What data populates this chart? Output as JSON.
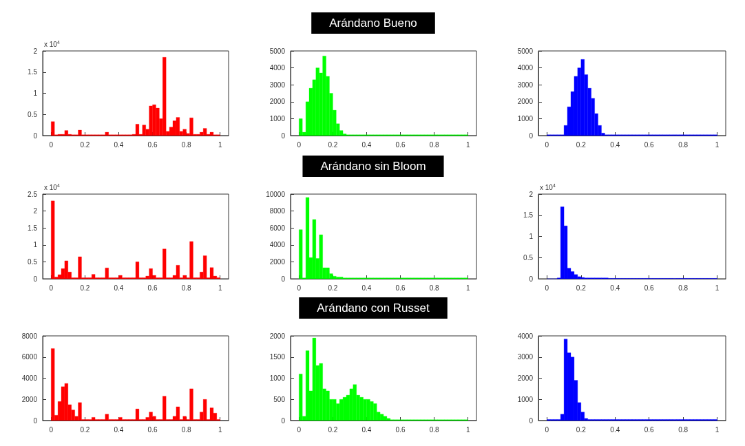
{
  "chart_data": [
    {
      "type": "histogram",
      "color": "#ff0000",
      "bins": [
        0,
        0.02,
        0.04,
        0.06,
        0.08,
        0.1,
        0.12,
        0.14,
        0.16,
        0.18,
        0.2,
        0.22,
        0.24,
        0.26,
        0.28,
        0.3,
        0.32,
        0.34,
        0.36,
        0.38,
        0.4,
        0.42,
        0.44,
        0.46,
        0.48,
        0.5,
        0.52,
        0.54,
        0.56,
        0.58,
        0.6,
        0.62,
        0.64,
        0.66,
        0.68,
        0.7,
        0.72,
        0.74,
        0.76,
        0.78,
        0.8,
        0.82,
        0.84,
        0.86,
        0.88,
        0.9,
        0.92,
        0.94,
        0.96,
        0.98,
        1
      ],
      "values": [
        0.33,
        0.02,
        0.03,
        0.03,
        0.12,
        0.03,
        0.02,
        0.02,
        0.13,
        0.02,
        0.02,
        0.02,
        0.02,
        0.02,
        0.02,
        0.02,
        0.08,
        0.02,
        0.02,
        0.02,
        0.02,
        0.02,
        0.02,
        0.02,
        0.03,
        0.27,
        0.03,
        0.25,
        0.15,
        0.7,
        0.73,
        0.65,
        0.4,
        1.85,
        0.1,
        0.2,
        0.35,
        0.43,
        0.1,
        0.15,
        0.05,
        0.42,
        0.03,
        0.03,
        0.08,
        0.17,
        0.03,
        0.08,
        0.02,
        0.02
      ],
      "xlim": [
        -0.05,
        1.05
      ],
      "xticks": [
        0,
        0.2,
        0.4,
        0.6,
        0.8,
        1
      ],
      "ylim": [
        0,
        2
      ],
      "yticks": [
        0,
        0.5,
        1,
        1.5,
        2
      ],
      "annotations": [
        "x 10$^{4}$"
      ]
    },
    {
      "type": "histogram",
      "title": "Arándano Bueno",
      "color": "#00ff00",
      "bins": [
        0,
        0.02,
        0.04,
        0.06,
        0.08,
        0.1,
        0.12,
        0.14,
        0.16,
        0.18,
        0.2,
        0.22,
        0.24,
        0.26,
        0.28,
        0.3,
        0.32,
        0.34,
        0.36,
        0.38,
        0.4,
        0.42,
        0.44,
        0.46,
        0.48,
        0.5,
        0.52,
        0.54,
        0.56,
        0.58,
        0.6,
        0.62,
        0.64,
        0.66,
        0.68,
        0.7,
        0.72,
        0.74,
        0.76,
        0.78,
        0.8,
        0.82,
        0.84,
        0.86,
        0.88,
        0.9,
        0.92,
        0.94,
        0.96,
        0.98,
        1
      ],
      "values": [
        1000,
        200,
        2000,
        2800,
        3300,
        4000,
        3700,
        4700,
        3500,
        2500,
        1500,
        700,
        300,
        100,
        50,
        50,
        50,
        50,
        50,
        50,
        50,
        50,
        50,
        50,
        50,
        50,
        50,
        50,
        50,
        50,
        50,
        50,
        50,
        50,
        50,
        50,
        50,
        50,
        50,
        50,
        50,
        50,
        50,
        50,
        50,
        50,
        50,
        50,
        50,
        50
      ],
      "xlim": [
        -0.05,
        1.05
      ],
      "xticks": [
        0,
        0.2,
        0.4,
        0.6,
        0.8,
        1
      ],
      "ylim": [
        0,
        5000
      ],
      "yticks": [
        0,
        1000,
        2000,
        3000,
        4000,
        5000
      ]
    },
    {
      "type": "histogram",
      "color": "#0000ff",
      "bins": [
        0,
        0.02,
        0.04,
        0.06,
        0.08,
        0.1,
        0.12,
        0.14,
        0.16,
        0.18,
        0.2,
        0.22,
        0.24,
        0.26,
        0.28,
        0.3,
        0.32,
        0.34,
        0.36,
        0.38,
        0.4,
        0.42,
        0.44,
        0.46,
        0.48,
        0.5,
        0.52,
        0.54,
        0.56,
        0.58,
        0.6,
        0.62,
        0.64,
        0.66,
        0.68,
        0.7,
        0.72,
        0.74,
        0.76,
        0.78,
        0.8,
        0.82,
        0.84,
        0.86,
        0.88,
        0.9,
        0.92,
        0.94,
        0.96,
        0.98,
        1
      ],
      "values": [
        50,
        50,
        50,
        50,
        50,
        600,
        1700,
        2600,
        3500,
        4000,
        4500,
        3600,
        2800,
        2200,
        1300,
        600,
        150,
        50,
        50,
        50,
        50,
        50,
        50,
        50,
        50,
        50,
        50,
        50,
        50,
        50,
        50,
        50,
        50,
        50,
        50,
        50,
        50,
        50,
        50,
        50,
        50,
        50,
        50,
        50,
        50,
        50,
        50,
        50,
        50,
        50
      ],
      "xlim": [
        -0.05,
        1.05
      ],
      "xticks": [
        0,
        0.2,
        0.4,
        0.6,
        0.8,
        1
      ],
      "ylim": [
        0,
        5000
      ],
      "yticks": [
        0,
        1000,
        2000,
        3000,
        4000,
        5000
      ]
    },
    {
      "type": "histogram",
      "color": "#ff0000",
      "bins": [
        0,
        0.02,
        0.04,
        0.06,
        0.08,
        0.1,
        0.12,
        0.14,
        0.16,
        0.18,
        0.2,
        0.22,
        0.24,
        0.26,
        0.28,
        0.3,
        0.32,
        0.34,
        0.36,
        0.38,
        0.4,
        0.42,
        0.44,
        0.46,
        0.48,
        0.5,
        0.52,
        0.54,
        0.56,
        0.58,
        0.6,
        0.62,
        0.64,
        0.66,
        0.68,
        0.7,
        0.72,
        0.74,
        0.76,
        0.78,
        0.8,
        0.82,
        0.84,
        0.86,
        0.88,
        0.9,
        0.92,
        0.94,
        0.96,
        0.98,
        1
      ],
      "values": [
        2.3,
        0.05,
        0.12,
        0.3,
        0.53,
        0.2,
        0.03,
        0.03,
        0.65,
        0.03,
        0.03,
        0.03,
        0.13,
        0.03,
        0.03,
        0.03,
        0.32,
        0.03,
        0.03,
        0.03,
        0.1,
        0.03,
        0.03,
        0.03,
        0.03,
        0.5,
        0.03,
        0.03,
        0.08,
        0.3,
        0.1,
        0.03,
        0.03,
        0.88,
        0.03,
        0.03,
        0.1,
        0.4,
        0.03,
        0.1,
        0.03,
        1.1,
        0.03,
        0.03,
        0.2,
        0.68,
        0.03,
        0.33,
        0.08,
        0.03
      ],
      "xlim": [
        -0.05,
        1.05
      ],
      "xticks": [
        0,
        0.2,
        0.4,
        0.6,
        0.8,
        1
      ],
      "ylim": [
        0,
        2.5
      ],
      "yticks": [
        0,
        0.5,
        1,
        1.5,
        2,
        2.5
      ],
      "annotations": [
        "x 10$^{4}$"
      ]
    },
    {
      "type": "histogram",
      "title": "Arándano sin Bloom",
      "color": "#00ff00",
      "bins": [
        0,
        0.02,
        0.04,
        0.06,
        0.08,
        0.1,
        0.12,
        0.14,
        0.16,
        0.18,
        0.2,
        0.22,
        0.24,
        0.26,
        0.28,
        0.3,
        0.32,
        0.34,
        0.36,
        0.38,
        0.4,
        0.42,
        0.44,
        0.46,
        0.48,
        0.5,
        0.52,
        0.54,
        0.56,
        0.58,
        0.6,
        0.62,
        0.64,
        0.66,
        0.68,
        0.7,
        0.72,
        0.74,
        0.76,
        0.78,
        0.8,
        0.82,
        0.84,
        0.86,
        0.88,
        0.9,
        0.92,
        0.94,
        0.96,
        0.98,
        1
      ],
      "values": [
        5800,
        100,
        9600,
        2500,
        7000,
        2400,
        5200,
        1300,
        1300,
        600,
        300,
        200,
        200,
        100,
        100,
        100,
        100,
        100,
        100,
        100,
        100,
        100,
        100,
        100,
        100,
        100,
        100,
        100,
        100,
        100,
        100,
        100,
        100,
        100,
        100,
        100,
        100,
        100,
        100,
        100,
        100,
        100,
        100,
        100,
        100,
        100,
        100,
        100,
        100,
        100
      ],
      "xlim": [
        -0.05,
        1.05
      ],
      "xticks": [
        0,
        0.2,
        0.4,
        0.6,
        0.8,
        1
      ],
      "ylim": [
        0,
        10000
      ],
      "yticks": [
        0,
        2000,
        4000,
        6000,
        8000,
        10000
      ]
    },
    {
      "type": "histogram",
      "color": "#0000ff",
      "bins": [
        0,
        0.02,
        0.04,
        0.06,
        0.08,
        0.1,
        0.12,
        0.14,
        0.16,
        0.18,
        0.2,
        0.22,
        0.24,
        0.26,
        0.28,
        0.3,
        0.32,
        0.34,
        0.36,
        0.38,
        0.4,
        0.42,
        0.44,
        0.46,
        0.48,
        0.5,
        0.52,
        0.54,
        0.56,
        0.58,
        0.6,
        0.62,
        0.64,
        0.66,
        0.68,
        0.7,
        0.72,
        0.74,
        0.76,
        0.78,
        0.8,
        0.82,
        0.84,
        0.86,
        0.88,
        0.9,
        0.92,
        0.94,
        0.96,
        0.98,
        1
      ],
      "values": [
        0,
        0,
        0,
        0.02,
        1.7,
        1.25,
        0.25,
        0.17,
        0.1,
        0.05,
        0.03,
        0.02,
        0.02,
        0.02,
        0.02,
        0.02,
        0.02,
        0.02,
        0.01,
        0.01,
        0.01,
        0.01,
        0.01,
        0.01,
        0.01,
        0.01,
        0.01,
        0.01,
        0.01,
        0.01,
        0.01,
        0.01,
        0.01,
        0.01,
        0.01,
        0.01,
        0.01,
        0.01,
        0.01,
        0.01,
        0.01,
        0.01,
        0.01,
        0.01,
        0.01,
        0.01,
        0.01,
        0.01,
        0.01,
        0.01
      ],
      "xlim": [
        -0.05,
        1.05
      ],
      "xticks": [
        0,
        0.2,
        0.4,
        0.6,
        0.8,
        1
      ],
      "ylim": [
        0,
        2
      ],
      "yticks": [
        0,
        0.5,
        1,
        1.5,
        2
      ],
      "annotations": [
        "x 10$^{4}$"
      ]
    },
    {
      "type": "histogram",
      "color": "#ff0000",
      "bins": [
        0,
        0.02,
        0.04,
        0.06,
        0.08,
        0.1,
        0.12,
        0.14,
        0.16,
        0.18,
        0.2,
        0.22,
        0.24,
        0.26,
        0.28,
        0.3,
        0.32,
        0.34,
        0.36,
        0.38,
        0.4,
        0.42,
        0.44,
        0.46,
        0.48,
        0.5,
        0.52,
        0.54,
        0.56,
        0.58,
        0.6,
        0.62,
        0.64,
        0.66,
        0.68,
        0.7,
        0.72,
        0.74,
        0.76,
        0.78,
        0.8,
        0.82,
        0.84,
        0.86,
        0.88,
        0.9,
        0.92,
        0.94,
        0.96,
        0.98,
        1
      ],
      "values": [
        6800,
        500,
        1800,
        3200,
        3500,
        1500,
        1000,
        400,
        1700,
        100,
        100,
        100,
        300,
        100,
        100,
        100,
        600,
        100,
        100,
        100,
        300,
        100,
        100,
        100,
        100,
        1100,
        100,
        100,
        300,
        800,
        400,
        100,
        100,
        2300,
        100,
        100,
        400,
        1300,
        100,
        400,
        100,
        3000,
        100,
        100,
        800,
        2000,
        100,
        1200,
        700,
        100
      ],
      "xlim": [
        -0.05,
        1.05
      ],
      "xticks": [
        0,
        0.2,
        0.4,
        0.6,
        0.8,
        1
      ],
      "ylim": [
        0,
        8000
      ],
      "yticks": [
        0,
        2000,
        4000,
        6000,
        8000
      ]
    },
    {
      "type": "histogram",
      "title": "Arándano con Russet",
      "color": "#00ff00",
      "bins": [
        0,
        0.02,
        0.04,
        0.06,
        0.08,
        0.1,
        0.12,
        0.14,
        0.16,
        0.18,
        0.2,
        0.22,
        0.24,
        0.26,
        0.28,
        0.3,
        0.32,
        0.34,
        0.36,
        0.38,
        0.4,
        0.42,
        0.44,
        0.46,
        0.48,
        0.5,
        0.52,
        0.54,
        0.56,
        0.58,
        0.6,
        0.62,
        0.64,
        0.66,
        0.68,
        0.7,
        0.72,
        0.74,
        0.76,
        0.78,
        0.8,
        0.82,
        0.84,
        0.86,
        0.88,
        0.9,
        0.92,
        0.94,
        0.96,
        0.98,
        1
      ],
      "values": [
        1100,
        100,
        1650,
        700,
        1950,
        1300,
        1350,
        750,
        700,
        500,
        500,
        400,
        500,
        550,
        600,
        750,
        850,
        600,
        550,
        500,
        500,
        450,
        400,
        200,
        150,
        100,
        50,
        20,
        20,
        20,
        20,
        20,
        20,
        20,
        20,
        20,
        20,
        20,
        20,
        20,
        20,
        20,
        20,
        20,
        20,
        20,
        20,
        20,
        20,
        20
      ],
      "xlim": [
        -0.05,
        1.05
      ],
      "xticks": [
        0,
        0.2,
        0.4,
        0.6,
        0.8,
        1
      ],
      "ylim": [
        0,
        2000
      ],
      "yticks": [
        0,
        500,
        1000,
        1500,
        2000
      ]
    },
    {
      "type": "histogram",
      "color": "#0000ff",
      "bins": [
        0,
        0.02,
        0.04,
        0.06,
        0.08,
        0.1,
        0.12,
        0.14,
        0.16,
        0.18,
        0.2,
        0.22,
        0.24,
        0.26,
        0.28,
        0.3,
        0.32,
        0.34,
        0.36,
        0.38,
        0.4,
        0.42,
        0.44,
        0.46,
        0.48,
        0.5,
        0.52,
        0.54,
        0.56,
        0.58,
        0.6,
        0.62,
        0.64,
        0.66,
        0.68,
        0.7,
        0.72,
        0.74,
        0.76,
        0.78,
        0.8,
        0.82,
        0.84,
        0.86,
        0.88,
        0.9,
        0.92,
        0.94,
        0.96,
        0.98,
        1
      ],
      "values": [
        50,
        50,
        50,
        50,
        300,
        3850,
        3200,
        3000,
        1900,
        850,
        400,
        100,
        50,
        50,
        50,
        50,
        50,
        50,
        50,
        50,
        50,
        50,
        50,
        50,
        50,
        50,
        50,
        50,
        50,
        50,
        50,
        50,
        50,
        50,
        50,
        50,
        50,
        50,
        50,
        50,
        50,
        50,
        50,
        50,
        50,
        50,
        50,
        50,
        50,
        50
      ],
      "xlim": [
        -0.05,
        1.05
      ],
      "xticks": [
        0,
        0.2,
        0.4,
        0.6,
        0.8,
        1
      ],
      "ylim": [
        0,
        4000
      ],
      "yticks": [
        0,
        1000,
        2000,
        3000,
        4000
      ]
    }
  ]
}
